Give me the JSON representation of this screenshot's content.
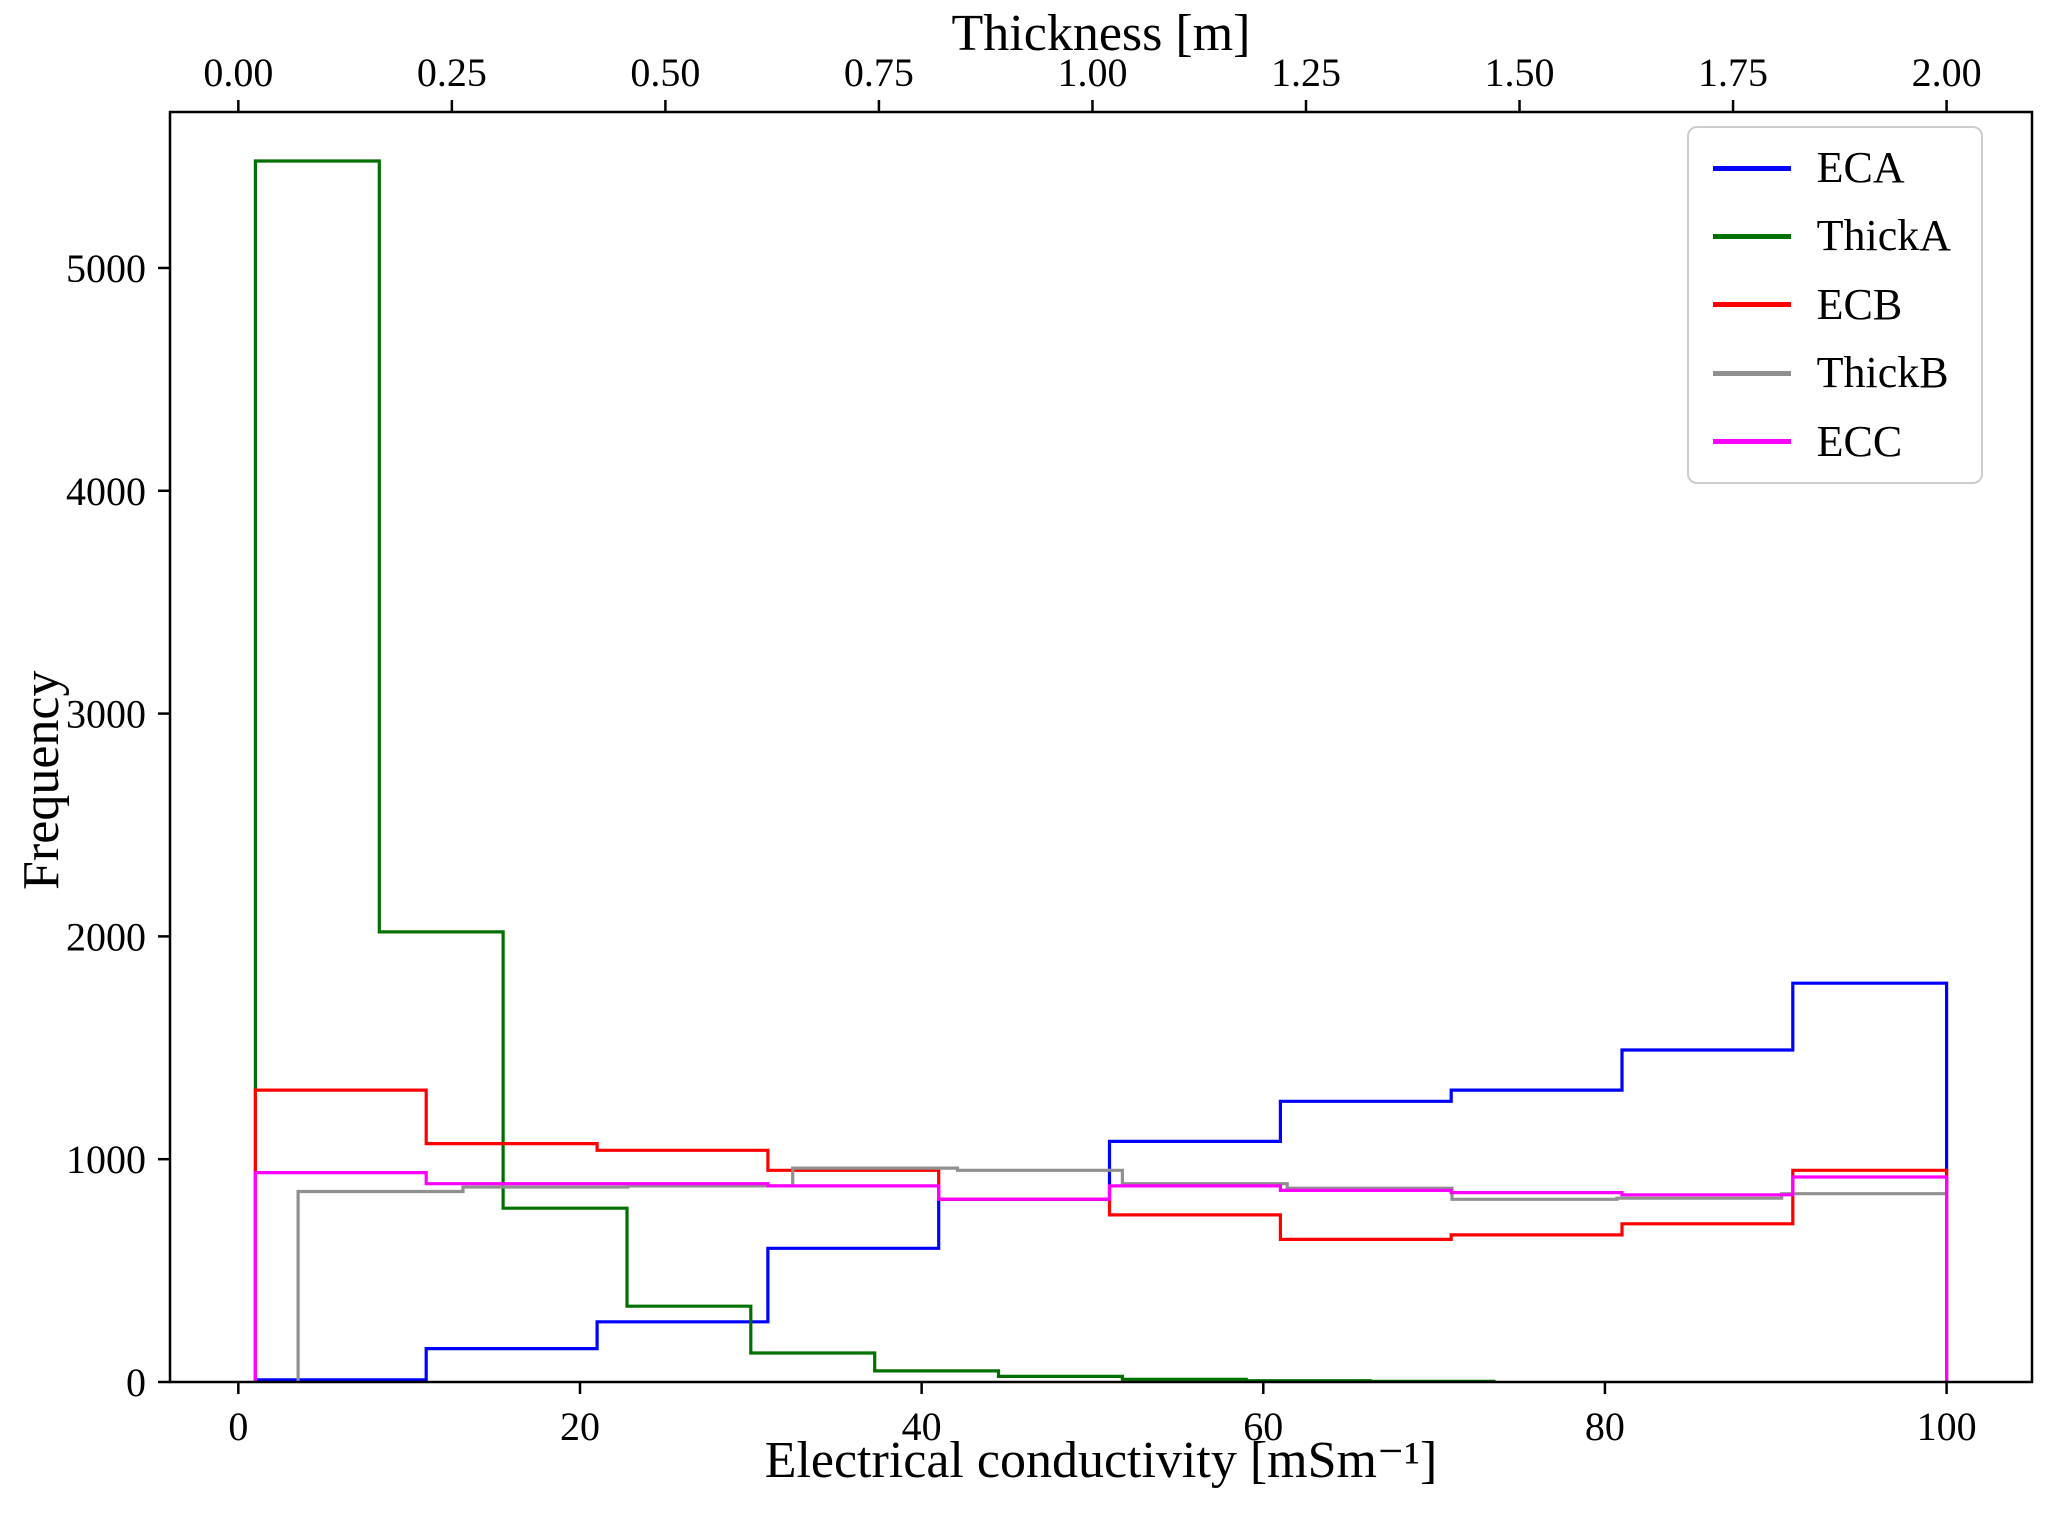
{
  "chart_data": {
    "type": "step-histogram",
    "title": "",
    "x_bottom": {
      "label": "Electrical conductivity [mSm⁻¹]",
      "ticks": [
        0,
        20,
        40,
        60,
        80,
        100
      ],
      "tick_labels": [
        "0",
        "20",
        "40",
        "60",
        "80",
        "100"
      ],
      "lim": [
        -4,
        105
      ]
    },
    "x_top": {
      "label": "Thickness [m]",
      "ticks": [
        0,
        0.25,
        0.5,
        0.75,
        1.0,
        1.25,
        1.5,
        1.75,
        2.0
      ],
      "tick_labels": [
        "0.00",
        "0.25",
        "0.50",
        "0.75",
        "1.00",
        "1.25",
        "1.50",
        "1.75",
        "2.00"
      ],
      "lim": [
        -0.08,
        2.1
      ],
      "scale_to_bottom": 50
    },
    "y": {
      "label": "Frequency",
      "ticks": [
        0,
        1000,
        2000,
        3000,
        4000,
        5000
      ],
      "tick_labels": [
        "0",
        "1000",
        "2000",
        "3000",
        "4000",
        "5000"
      ],
      "lim": [
        0,
        5700
      ]
    },
    "grid": false,
    "legend": {
      "position": "upper right",
      "entries": [
        "ECA",
        "ThickA",
        "ECB",
        "ThickB",
        "ECC"
      ]
    },
    "series": [
      {
        "name": "ECA",
        "color": "#0000ff",
        "axis": "bottom",
        "edges": [
          1,
          11,
          21,
          31,
          41,
          51,
          61,
          71,
          81,
          91,
          100
        ],
        "heights": [
          10,
          150,
          270,
          600,
          820,
          1080,
          1260,
          1310,
          1490,
          1790
        ]
      },
      {
        "name": "ThickA",
        "color": "#007000",
        "axis": "top",
        "edges": [
          0.02,
          0.165,
          0.31,
          0.455,
          0.6,
          0.745,
          0.89,
          1.035,
          1.18,
          1.325,
          1.47
        ],
        "heights": [
          5480,
          2020,
          780,
          340,
          130,
          50,
          25,
          12,
          6,
          3
        ]
      },
      {
        "name": "ECB",
        "color": "#ff0000",
        "axis": "bottom",
        "edges": [
          1,
          11,
          21,
          31,
          41,
          51,
          61,
          71,
          81,
          91,
          100
        ],
        "heights": [
          1310,
          1070,
          1040,
          950,
          820,
          750,
          640,
          660,
          710,
          950
        ]
      },
      {
        "name": "ThickB",
        "color": "#909090",
        "axis": "top",
        "edges": [
          0.07,
          0.263,
          0.456,
          0.649,
          0.842,
          1.035,
          1.228,
          1.421,
          1.614,
          1.807,
          2.0
        ],
        "heights": [
          855,
          875,
          880,
          960,
          950,
          890,
          870,
          820,
          825,
          845
        ]
      },
      {
        "name": "ECC",
        "color": "#ff00ff",
        "axis": "bottom",
        "edges": [
          1,
          11,
          21,
          31,
          41,
          51,
          61,
          71,
          81,
          91,
          100
        ],
        "heights": [
          940,
          890,
          890,
          880,
          820,
          880,
          860,
          850,
          840,
          920
        ]
      }
    ]
  }
}
